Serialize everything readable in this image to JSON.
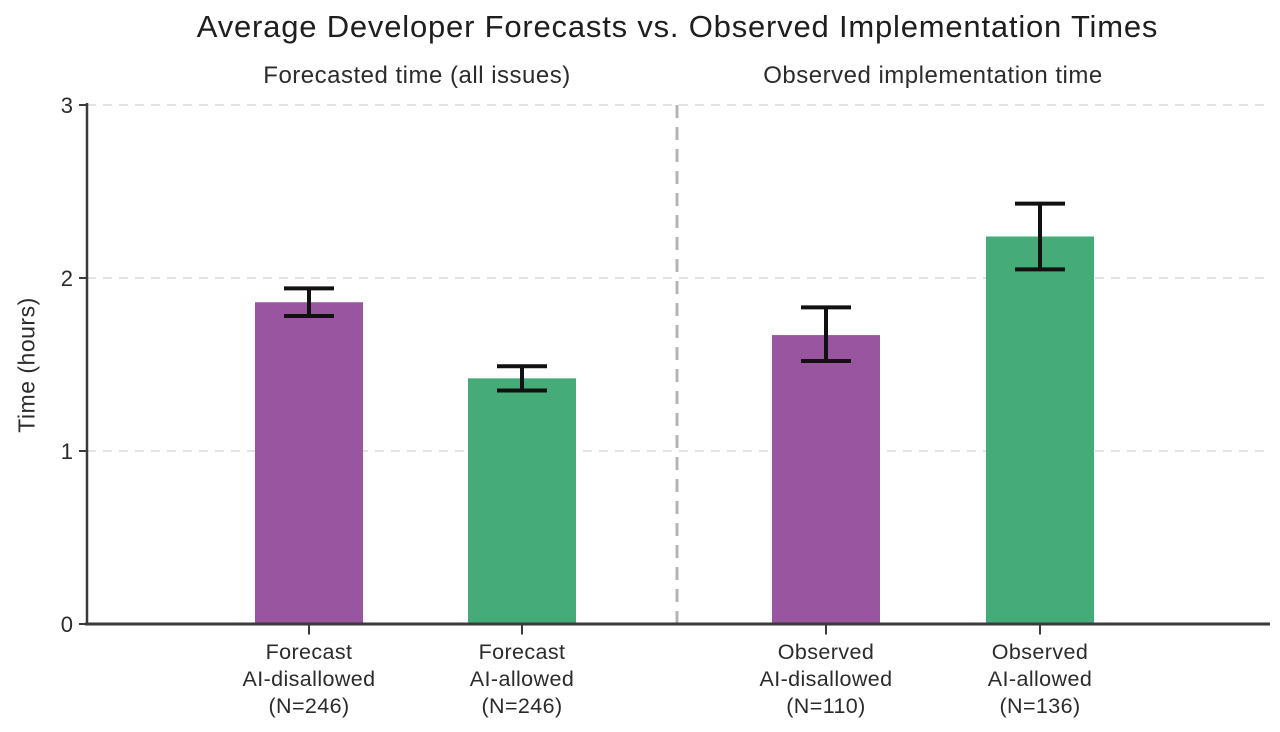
{
  "chart_data": {
    "type": "bar",
    "title": "Average Developer Forecasts vs. Observed Implementation Times",
    "panel_titles": [
      "Forecasted time (all issues)",
      "Observed implementation time"
    ],
    "ylabel": "Time (hours)",
    "ylim": [
      0,
      3
    ],
    "yticks": [
      0,
      1,
      2,
      3
    ],
    "grid": "horizontal dashed gridlines at each y tick",
    "legend_position": "none",
    "divider": "vertical dashed line separating forecast panel from observed panel",
    "colors": {
      "ai_disallowed": "#9a55a0",
      "ai_allowed": "#45ab79",
      "error_bar": "#111111",
      "axis": "#3a3a3a",
      "gridline": "#e3e3e3",
      "divider_line": "#b4b4b4"
    },
    "bars": [
      {
        "label_lines": [
          "Forecast",
          "AI-disallowed",
          "(N=246)"
        ],
        "value": 1.86,
        "error_low": 1.78,
        "error_high": 1.94,
        "color_key": "ai_disallowed",
        "panel": 0
      },
      {
        "label_lines": [
          "Forecast",
          "AI-allowed",
          "(N=246)"
        ],
        "value": 1.42,
        "error_low": 1.35,
        "error_high": 1.49,
        "color_key": "ai_allowed",
        "panel": 0
      },
      {
        "label_lines": [
          "Observed",
          "AI-disallowed",
          "(N=110)"
        ],
        "value": 1.67,
        "error_low": 1.52,
        "error_high": 1.83,
        "color_key": "ai_disallowed",
        "panel": 1
      },
      {
        "label_lines": [
          "Observed",
          "AI-allowed",
          "(N=136)"
        ],
        "value": 2.24,
        "error_low": 2.05,
        "error_high": 2.43,
        "color_key": "ai_allowed",
        "panel": 1
      }
    ]
  }
}
